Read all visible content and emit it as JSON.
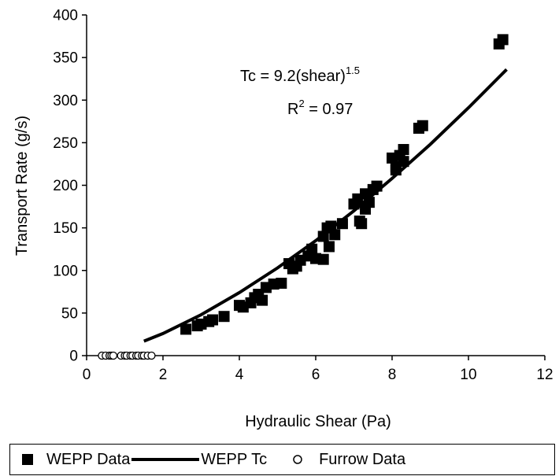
{
  "chart_data": {
    "type": "scatter",
    "xlabel": "Hydraulic Shear (Pa)",
    "ylabel": "Transport Rate (g/s)",
    "xlim": [
      0,
      12
    ],
    "ylim": [
      0,
      400
    ],
    "xticks": [
      "0",
      "2",
      "4",
      "6",
      "8",
      "10",
      "12"
    ],
    "yticks": [
      "0",
      "50",
      "100",
      "150",
      "200",
      "250",
      "300",
      "350",
      "400"
    ],
    "grid": false,
    "legend_position": "bottom",
    "annotation": {
      "equation_base": "Tc = 9.2(shear)",
      "equation_exponent": "1.5",
      "r2_prefix": "R",
      "r2_exponent": "2",
      "r2_value": " = 0.97"
    },
    "series": [
      {
        "name": "WEPP Data",
        "type": "scatter",
        "marker": "filled-square",
        "color": "#000000",
        "points": [
          [
            2.6,
            31
          ],
          [
            2.9,
            35
          ],
          [
            3.0,
            37
          ],
          [
            3.2,
            40
          ],
          [
            3.3,
            42
          ],
          [
            3.6,
            46
          ],
          [
            4.0,
            59
          ],
          [
            4.1,
            57
          ],
          [
            4.3,
            62
          ],
          [
            4.4,
            68
          ],
          [
            4.5,
            72
          ],
          [
            4.6,
            65
          ],
          [
            4.7,
            80
          ],
          [
            4.9,
            84
          ],
          [
            5.1,
            85
          ],
          [
            5.3,
            108
          ],
          [
            5.4,
            102
          ],
          [
            5.5,
            105
          ],
          [
            5.6,
            112
          ],
          [
            5.8,
            117
          ],
          [
            5.9,
            125
          ],
          [
            6.0,
            114
          ],
          [
            6.2,
            113
          ],
          [
            6.2,
            140
          ],
          [
            6.3,
            150
          ],
          [
            6.35,
            128
          ],
          [
            6.4,
            152
          ],
          [
            6.5,
            142
          ],
          [
            6.7,
            155
          ],
          [
            7.0,
            178
          ],
          [
            7.1,
            184
          ],
          [
            7.15,
            158
          ],
          [
            7.2,
            155
          ],
          [
            7.3,
            172
          ],
          [
            7.3,
            190
          ],
          [
            7.4,
            180
          ],
          [
            7.5,
            195
          ],
          [
            7.6,
            199
          ],
          [
            8.0,
            232
          ],
          [
            8.1,
            222
          ],
          [
            8.1,
            218
          ],
          [
            8.2,
            235
          ],
          [
            8.3,
            242
          ],
          [
            8.3,
            228
          ],
          [
            8.7,
            267
          ],
          [
            8.8,
            270
          ],
          [
            10.8,
            366
          ],
          [
            10.9,
            371
          ]
        ]
      },
      {
        "name": "WEPP Tc",
        "type": "line",
        "color": "#000000",
        "x": [
          1.5,
          2,
          3,
          4,
          5,
          6,
          7,
          8,
          9,
          10,
          11
        ],
        "y": [
          17,
          26,
          48,
          74,
          103,
          135,
          170,
          208,
          248,
          291,
          336
        ]
      },
      {
        "name": "Furrow Data",
        "type": "scatter",
        "marker": "open-circle",
        "color": "#000000",
        "points": [
          [
            0.4,
            0
          ],
          [
            0.5,
            0
          ],
          [
            0.6,
            0
          ],
          [
            0.65,
            0
          ],
          [
            0.7,
            0
          ],
          [
            0.9,
            0
          ],
          [
            1.0,
            0
          ],
          [
            1.05,
            0
          ],
          [
            1.15,
            0
          ],
          [
            1.2,
            0
          ],
          [
            1.3,
            0
          ],
          [
            1.35,
            0
          ],
          [
            1.45,
            0
          ],
          [
            1.5,
            0
          ],
          [
            1.6,
            0
          ],
          [
            1.7,
            0
          ]
        ]
      }
    ]
  }
}
